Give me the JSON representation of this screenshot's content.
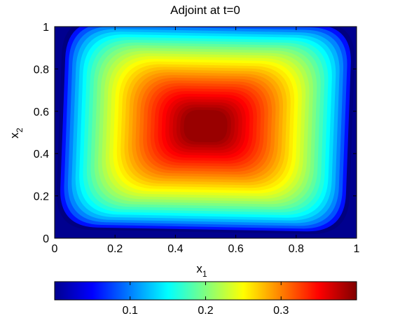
{
  "chart_data": {
    "type": "heatmap",
    "title": "Adjoint at t=0",
    "xlabel": "x",
    "xlabel_subscript": "1",
    "ylabel": "x",
    "ylabel_subscript": "2",
    "xlim": [
      0,
      1
    ],
    "ylim": [
      0,
      1
    ],
    "xticks": [
      0,
      0.2,
      0.4,
      0.6,
      0.8,
      1
    ],
    "xtick_labels": [
      "0",
      "0.2",
      "0.4",
      "0.6",
      "0.8",
      "1"
    ],
    "yticks": [
      0,
      0.2,
      0.4,
      0.6,
      0.8,
      1
    ],
    "ytick_labels": [
      "0",
      "0.2",
      "0.4",
      "0.6",
      "0.8",
      "1"
    ],
    "colormap": "jet",
    "colorbar": {
      "orientation": "horizontal",
      "placement": "bottom",
      "clim": [
        0,
        0.4
      ],
      "ticks": [
        0.1,
        0.2,
        0.3
      ],
      "tick_labels": [
        "0.1",
        "0.2",
        "0.3"
      ]
    },
    "field": {
      "description": "value is zero on the boundary, rises to a maximum of about 0.39 in the interior",
      "max_value": 0.39,
      "center": [
        0.5,
        0.53
      ]
    }
  }
}
